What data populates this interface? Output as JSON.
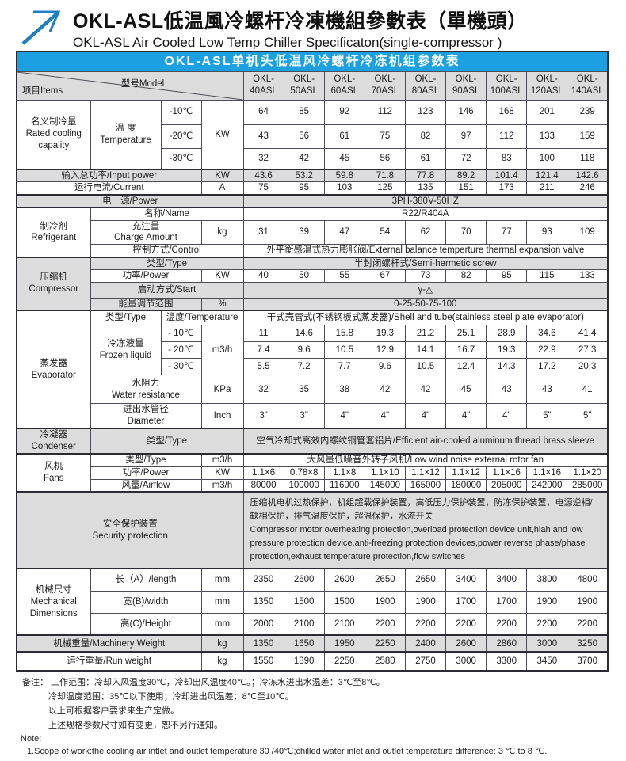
{
  "page": {
    "title_zh": "OKL-ASL低温風冷螺杆冷凍機組參數表（單機頭）",
    "title_en": "OKL-ASL Air Cooled Low Temp Chiller Specificaton(single-compressor )"
  },
  "colors": {
    "banner": "#1ba0e2",
    "shade": "#dcdcdc",
    "border": "#4d4d57"
  },
  "table": {
    "banner": "OKL-ASL单机头低温风冷螺杆冷冻机组参数表",
    "corner": {
      "items": "项目Items",
      "model": "型号Model"
    },
    "model_prefix": "OKL-",
    "models": [
      "40ASL",
      "50ASL",
      "60ASL",
      "70ASL",
      "80ASL",
      "90ASL",
      "100ASL",
      "120ASL",
      "140ASL"
    ]
  },
  "sec": {
    "cooling": {
      "zh": "名义制冷量",
      "en": "Rated cooling capality",
      "temp_zh": "温 度",
      "temp_en": "Temperature",
      "unit": "KW",
      "rows": [
        {
          "t": "-10℃",
          "v": [
            64,
            85,
            92,
            112,
            123,
            146,
            168,
            201,
            239
          ]
        },
        {
          "t": "-20℃",
          "v": [
            43,
            56,
            61,
            75,
            82,
            97,
            112,
            133,
            159
          ]
        },
        {
          "t": "-30℃",
          "v": [
            32,
            42,
            45,
            56,
            61,
            72,
            83,
            100,
            118
          ]
        }
      ]
    },
    "input_power": {
      "label": "输入总功率/Input power",
      "unit": "KW",
      "v": [
        43.6,
        53.2,
        59.8,
        71.8,
        77.8,
        89.2,
        101.4,
        121.4,
        142.6
      ]
    },
    "current": {
      "label": "运行电流/Current",
      "unit": "A",
      "v": [
        75,
        95,
        103,
        125,
        135,
        151,
        173,
        211,
        246
      ]
    },
    "power_supply": {
      "label": "电　源/Power",
      "value": "3PH-380V-50HZ"
    },
    "refrigerant": {
      "zh": "制冷剂",
      "en": "Refrigerant",
      "name_label": "名称/Name",
      "name_value": "R22/R404A",
      "charge_zh": "充注量",
      "charge_en": "Charge Amount",
      "charge_unit": "kg",
      "charge_v": [
        31,
        39,
        47,
        54,
        62,
        70,
        77,
        93,
        109
      ],
      "control_label": "控制方式/Control",
      "control_value": "外平衡感温式热力膨胀阀/External balance temperture thermal expansion valve"
    },
    "compressor": {
      "zh": "压缩机",
      "en": "Compressor",
      "type_label": "类型/Type",
      "type_value": "半封闭螺杆式/Semi-hermetic screw",
      "power_label": "功率/Power",
      "power_unit": "KW",
      "power_v": [
        40,
        50,
        55,
        67,
        73,
        82,
        95,
        115,
        133
      ],
      "start_label": "启动方式/Start",
      "start_value": "γ-△",
      "energy_label": "能量调节范围",
      "energy_unit": "%",
      "energy_value": "0-25-50-75-100"
    },
    "evaporator": {
      "zh": "蒸发器",
      "en": "Evaporator",
      "type_label": "类型/Type",
      "temp_label": "温度/Temperature",
      "type_value": "干式壳管式(不锈钢板式蒸发器)/Shell and tube(stainless steel plate evaporator)",
      "frozen_zh": "冷冻液量",
      "frozen_en": "Frozen liquid",
      "frozen_unit": "m3/h",
      "frozen_rows": [
        {
          "t": "- 10℃",
          "v": [
            11,
            14.6,
            15.8,
            19.3,
            21.2,
            25.1,
            28.9,
            34.6,
            41.4
          ]
        },
        {
          "t": "- 20℃",
          "v": [
            7.4,
            9.6,
            10.5,
            12.9,
            14.1,
            16.7,
            19.3,
            22.9,
            27.3
          ]
        },
        {
          "t": "- 30℃",
          "v": [
            5.5,
            7.2,
            7.7,
            9.6,
            10.5,
            12.4,
            14.3,
            17.2,
            20.3
          ]
        }
      ],
      "water_zh": "水阻力",
      "water_en": "Water resistance",
      "water_unit": "KPa",
      "water_v": [
        32,
        35,
        38,
        42,
        42,
        45,
        43,
        43,
        41
      ],
      "diam_zh": "进出水管径",
      "diam_en": "Diameter",
      "diam_unit": "Inch",
      "diam_v": [
        "3\"",
        "3\"",
        "4\"",
        "4\"",
        "4\"",
        "4\"",
        "4\"",
        "5\"",
        "5\""
      ]
    },
    "condenser": {
      "zh": "冷凝器",
      "en": "Condenser",
      "type_label": "类型/Type",
      "type_value": "空气冷却式高效内螺纹铜管套铝片/Efficient air-cooled aluminum thread brass sleeve"
    },
    "fans": {
      "zh": "风机",
      "en": "Fans",
      "type_label": "类型/Type",
      "type_unit": "m3/h",
      "type_value": "大风量低噪音外转子风机/Low wind noise external rotor fan",
      "power_label": "功率/Power",
      "power_unit": "KW",
      "power_v": [
        "1.1×6",
        "0.78×8",
        "1.1×8",
        "1.1×10",
        "1.1×12",
        "1.1×12",
        "1.1×16",
        "1.1×16",
        "1.1×20"
      ],
      "airflow_label": "风量/Airflow",
      "airflow_unit": "m3/h",
      "airflow_v": [
        80000,
        100000,
        116000,
        145000,
        165000,
        180000,
        205000,
        242000,
        285000
      ]
    },
    "security": {
      "zh": "安全保护装置",
      "en": "Security protection",
      "text_zh": "压缩机电机过热保护，机组超载保护装置，高低压力保护装置，防冻保护装置，电源逆相/缺相保护，排气温度保护，超温保护，水流开关",
      "text_en": "Compressor motor overheating protection,overload protection device unit,hiah and low pressure protection device,anti-freezing protection devices,power reverse phase/phase protection,exhaust temperature protection,flow switches"
    },
    "mechanical": {
      "zh": "机械尺寸",
      "en": "Mechanical Dimensions",
      "rows": [
        {
          "label": "长（A）/length",
          "unit": "mm",
          "v": [
            2350,
            2600,
            2600,
            2650,
            2650,
            3400,
            3400,
            3800,
            4800
          ]
        },
        {
          "label": "宽(B)/width",
          "unit": "mm",
          "v": [
            1350,
            1500,
            1500,
            1900,
            1900,
            1700,
            1700,
            1900,
            1900
          ]
        },
        {
          "label": "高(C)/Height",
          "unit": "mm",
          "v": [
            2000,
            2100,
            2100,
            2200,
            2200,
            2200,
            2200,
            2200,
            2200
          ]
        }
      ]
    },
    "mach_weight": {
      "label": "机械重量/Machinery Weight",
      "unit": "kg",
      "v": [
        1350,
        1650,
        1950,
        2250,
        2400,
        2600,
        2860,
        3000,
        3250
      ]
    },
    "run_weight": {
      "label": "运行重量/Run weight",
      "unit": "kg",
      "v": [
        1550,
        1890,
        2250,
        2580,
        2750,
        3000,
        3300,
        3450,
        3700
      ]
    }
  },
  "notes": {
    "lines": [
      "备注： 工作范围：冷却入风温度30℃，冷却出风温度40℃。；冷冻水进出水温差：3℃至8℃。",
      "冷却温度范围：35℃以下使用；冷却进出风温差：8℃至10℃。",
      "以上可根据客户要求来生产定做。",
      "上述规格参数尺寸如有变更，恕不另行通知。",
      "Note:",
      "1.Scope of work:the cooling air intlet and  outlet temperature 30 /40℃;chilled water inlet and outlet temperature difference: 3 ℃ to 8 ℃."
    ]
  }
}
